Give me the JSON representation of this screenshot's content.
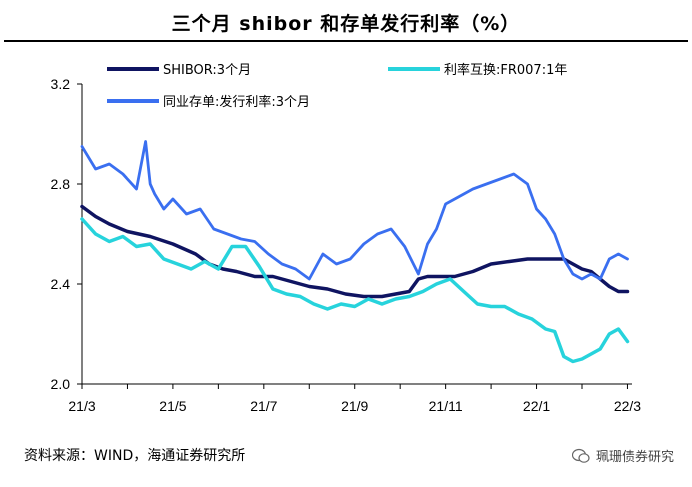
{
  "title": "三个月 shibor 和存单发行利率（%）",
  "source": "资料来源：WIND，海通证券研究所",
  "watermark": "珮珊债券研究",
  "colors": {
    "shibor": "#0f1461",
    "fr007": "#27d3dc",
    "ncd": "#3a6ff0"
  },
  "chart_data": {
    "type": "line",
    "title": "三个月 shibor 和存单发行利率（%）",
    "xlabel": "",
    "ylabel": "",
    "x_ticks": [
      "21/3",
      "21/5",
      "21/7",
      "21/9",
      "21/11",
      "22/1",
      "22/3"
    ],
    "y_ticks": [
      "2.0",
      "2.4",
      "2.8",
      "3.2"
    ],
    "ylim": [
      2.0,
      3.2
    ],
    "xlim": [
      0,
      12.1
    ],
    "grid": false,
    "legend_position": "top",
    "series": [
      {
        "name": "SHIBOR:3个月",
        "color_key": "shibor",
        "x": [
          0,
          0.3,
          0.6,
          1.0,
          1.5,
          2.0,
          2.5,
          2.8,
          3.1,
          3.4,
          3.8,
          4.2,
          4.6,
          5.0,
          5.4,
          5.8,
          6.2,
          6.6,
          6.9,
          7.2,
          7.4,
          7.6,
          7.8,
          8.2,
          8.6,
          9.0,
          9.4,
          9.8,
          10.2,
          10.6,
          11.0,
          11.2,
          11.4,
          11.6,
          11.8,
          12.0
        ],
        "y": [
          2.71,
          2.67,
          2.64,
          2.61,
          2.59,
          2.56,
          2.52,
          2.48,
          2.46,
          2.45,
          2.43,
          2.43,
          2.41,
          2.39,
          2.38,
          2.36,
          2.35,
          2.35,
          2.36,
          2.37,
          2.42,
          2.43,
          2.43,
          2.43,
          2.45,
          2.48,
          2.49,
          2.5,
          2.5,
          2.5,
          2.46,
          2.45,
          2.42,
          2.39,
          2.37,
          2.37
        ]
      },
      {
        "name": "利率互换:FR007:1年",
        "color_key": "fr007",
        "x": [
          0,
          0.3,
          0.6,
          0.9,
          1.2,
          1.5,
          1.8,
          2.1,
          2.4,
          2.7,
          3.0,
          3.3,
          3.6,
          3.9,
          4.2,
          4.5,
          4.8,
          5.1,
          5.4,
          5.7,
          6.0,
          6.3,
          6.6,
          6.9,
          7.2,
          7.5,
          7.8,
          8.1,
          8.4,
          8.7,
          9.0,
          9.3,
          9.6,
          9.9,
          10.2,
          10.4,
          10.6,
          10.8,
          11.0,
          11.2,
          11.4,
          11.6,
          11.8,
          12.0
        ],
        "y": [
          2.66,
          2.6,
          2.57,
          2.59,
          2.55,
          2.56,
          2.5,
          2.48,
          2.46,
          2.49,
          2.46,
          2.55,
          2.55,
          2.47,
          2.38,
          2.36,
          2.35,
          2.32,
          2.3,
          2.32,
          2.31,
          2.34,
          2.32,
          2.34,
          2.35,
          2.37,
          2.4,
          2.42,
          2.37,
          2.32,
          2.31,
          2.31,
          2.28,
          2.26,
          2.22,
          2.21,
          2.11,
          2.09,
          2.1,
          2.12,
          2.14,
          2.2,
          2.22,
          2.17
        ]
      },
      {
        "name": "同业存单:发行利率:3个月",
        "color_key": "ncd",
        "x": [
          0,
          0.3,
          0.6,
          0.9,
          1.2,
          1.4,
          1.5,
          1.6,
          1.8,
          2.0,
          2.3,
          2.6,
          2.9,
          3.2,
          3.5,
          3.8,
          4.1,
          4.4,
          4.7,
          5.0,
          5.3,
          5.6,
          5.9,
          6.2,
          6.5,
          6.8,
          7.1,
          7.4,
          7.6,
          7.8,
          8.0,
          8.3,
          8.6,
          8.9,
          9.2,
          9.5,
          9.8,
          10.0,
          10.2,
          10.4,
          10.6,
          10.8,
          11.0,
          11.2,
          11.4,
          11.6,
          11.8,
          12.0
        ],
        "y": [
          2.95,
          2.86,
          2.88,
          2.84,
          2.78,
          2.97,
          2.8,
          2.76,
          2.7,
          2.74,
          2.68,
          2.7,
          2.62,
          2.6,
          2.58,
          2.57,
          2.52,
          2.48,
          2.46,
          2.42,
          2.52,
          2.48,
          2.5,
          2.56,
          2.6,
          2.62,
          2.55,
          2.44,
          2.56,
          2.62,
          2.72,
          2.75,
          2.78,
          2.8,
          2.82,
          2.84,
          2.8,
          2.7,
          2.66,
          2.6,
          2.5,
          2.44,
          2.42,
          2.44,
          2.42,
          2.5,
          2.52,
          2.5
        ]
      }
    ]
  }
}
